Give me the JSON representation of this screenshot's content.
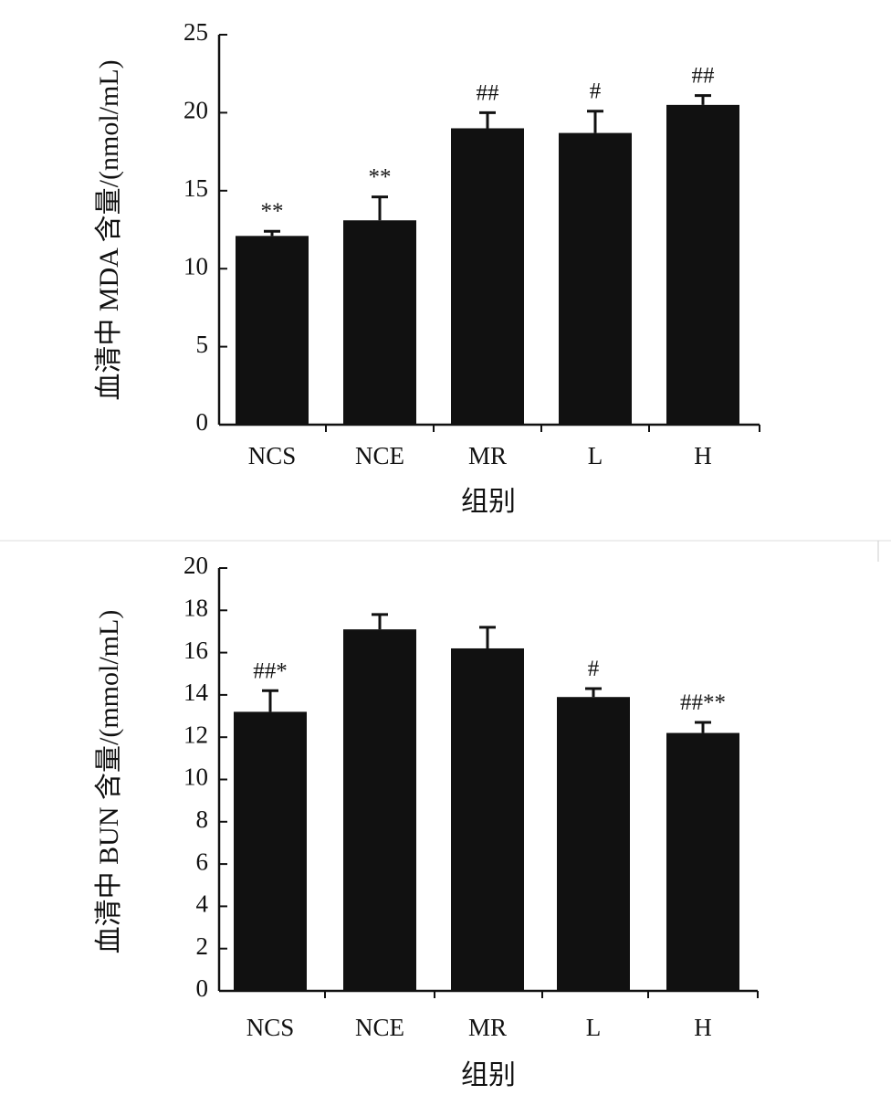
{
  "chart_data": [
    {
      "type": "bar",
      "categories": [
        "NCS",
        "NCE",
        "MR",
        "L",
        "H"
      ],
      "values": [
        12.1,
        13.1,
        19.0,
        18.7,
        20.5
      ],
      "errors": [
        0.3,
        1.5,
        1.0,
        1.4,
        0.6
      ],
      "annotations": [
        "**",
        "**",
        "##",
        "#",
        "##"
      ],
      "xlabel": "组别",
      "ylabel": "血清中 MDA 含量/(nmol/mL)",
      "ylim": [
        0,
        25
      ],
      "yticks": [
        "0",
        "5",
        "10",
        "15",
        "20",
        "25"
      ],
      "bar_color": "#111111",
      "grid": false
    },
    {
      "type": "bar",
      "categories": [
        "NCS",
        "NCE",
        "MR",
        "L",
        "H"
      ],
      "values": [
        13.2,
        17.1,
        16.2,
        13.9,
        12.2
      ],
      "errors": [
        1.0,
        0.7,
        1.0,
        0.4,
        0.5
      ],
      "annotations": [
        "##*",
        "",
        "",
        "#",
        "##**"
      ],
      "xlabel": "组别",
      "ylabel": "血清中 BUN 含量/(mmol/mL)",
      "ylim": [
        0,
        20
      ],
      "yticks": [
        "0",
        "2",
        "4",
        "6",
        "8",
        "10",
        "12",
        "14",
        "16",
        "18",
        "20"
      ],
      "bar_color": "#111111",
      "grid": false
    }
  ]
}
